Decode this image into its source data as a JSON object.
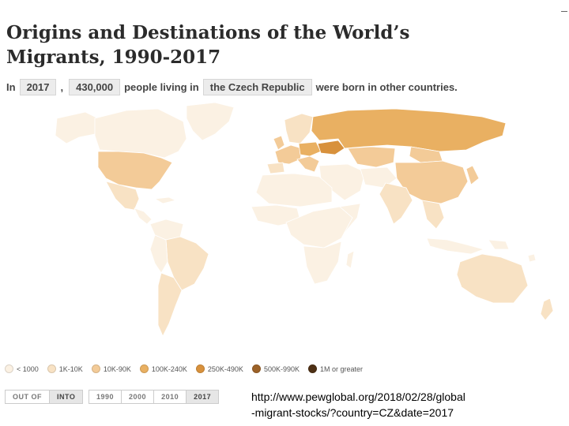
{
  "title": "Origins and Destinations of the World’s Migrants, 1990-2017",
  "sentence": {
    "prefix": "In",
    "year": "2017",
    "comma": ",",
    "count": "430,000",
    "middle": "people living in",
    "country": "the Czech Republic",
    "suffix": "were born in other countries."
  },
  "legend": [
    {
      "label": "< 1000",
      "color": "#fbf1e3"
    },
    {
      "label": "1K-10K",
      "color": "#f8e2c4"
    },
    {
      "label": "10K-90K",
      "color": "#f3cb98"
    },
    {
      "label": "100K-240K",
      "color": "#e9b062"
    },
    {
      "label": "250K-490K",
      "color": "#d8913c"
    },
    {
      "label": "500K-990K",
      "color": "#9c6228"
    },
    {
      "label": "1M or greater",
      "color": "#4e3015"
    }
  ],
  "direction_toggle": [
    {
      "label": "OUT OF",
      "active": false
    },
    {
      "label": "INTO",
      "active": true
    }
  ],
  "year_toggle": [
    {
      "label": "1990",
      "active": false
    },
    {
      "label": "2000",
      "active": false
    },
    {
      "label": "2010",
      "active": false
    },
    {
      "label": "2017",
      "active": true
    }
  ],
  "source_url": {
    "line1": "http://www.pewglobal.org/2018/02/28/global",
    "line2": "-migrant-stocks/?country=CZ&date=2017"
  },
  "map_colors": {
    "ocean": "#ffffff",
    "border": "#ffffff",
    "lightest": "#fbf1e3",
    "light": "#f8e2c4",
    "medium": "#f3cb98",
    "strong": "#e9b062",
    "highlight": "#d8913c"
  }
}
